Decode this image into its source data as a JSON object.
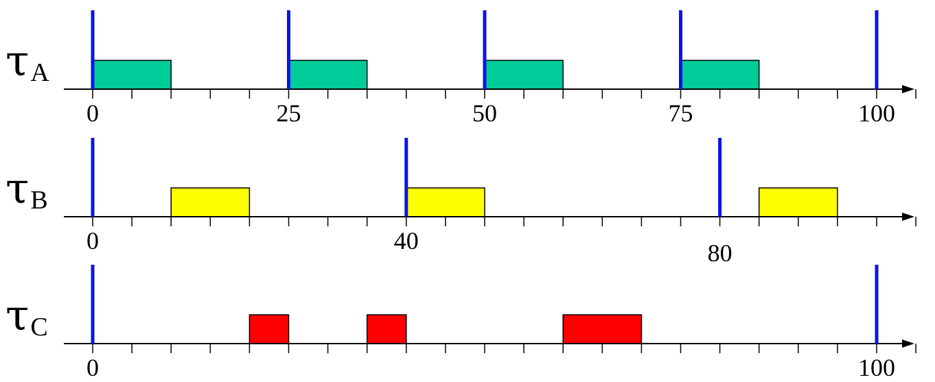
{
  "colors": {
    "release": "#0a14e6",
    "axis": "#000000",
    "task_A": "#00cc99",
    "task_B": "#ffff00",
    "task_C": "#ff0000"
  },
  "chart_data": {
    "type": "timeline",
    "time_unit_ticks": 5,
    "x_range": [
      0,
      105
    ],
    "rows": [
      {
        "id": "A",
        "symbol": "τ",
        "subscript": "A",
        "color_key": "task_A",
        "releases": [
          0,
          25,
          50,
          75,
          100
        ],
        "executions": [
          [
            0,
            10
          ],
          [
            25,
            35
          ],
          [
            50,
            60
          ],
          [
            75,
            85
          ]
        ],
        "tick_labels": [
          {
            "t": 0,
            "text": "0"
          },
          {
            "t": 25,
            "text": "25"
          },
          {
            "t": 50,
            "text": "50"
          },
          {
            "t": 75,
            "text": "75"
          },
          {
            "t": 100,
            "text": "100"
          }
        ]
      },
      {
        "id": "B",
        "symbol": "τ",
        "subscript": "B",
        "color_key": "task_B",
        "releases": [
          0,
          40,
          80
        ],
        "executions": [
          [
            10,
            20
          ],
          [
            40,
            50
          ],
          [
            85,
            95
          ]
        ],
        "tick_labels": [
          {
            "t": 0,
            "text": "0"
          },
          {
            "t": 40,
            "text": "40"
          },
          {
            "t": 80,
            "text": "80",
            "lower": true
          }
        ]
      },
      {
        "id": "C",
        "symbol": "τ",
        "subscript": "C",
        "color_key": "task_C",
        "releases": [
          0,
          100
        ],
        "executions": [
          [
            20,
            25
          ],
          [
            35,
            40
          ],
          [
            60,
            70
          ]
        ],
        "tick_labels": [
          {
            "t": 0,
            "text": "0"
          },
          {
            "t": 100,
            "text": "100"
          }
        ]
      }
    ]
  }
}
